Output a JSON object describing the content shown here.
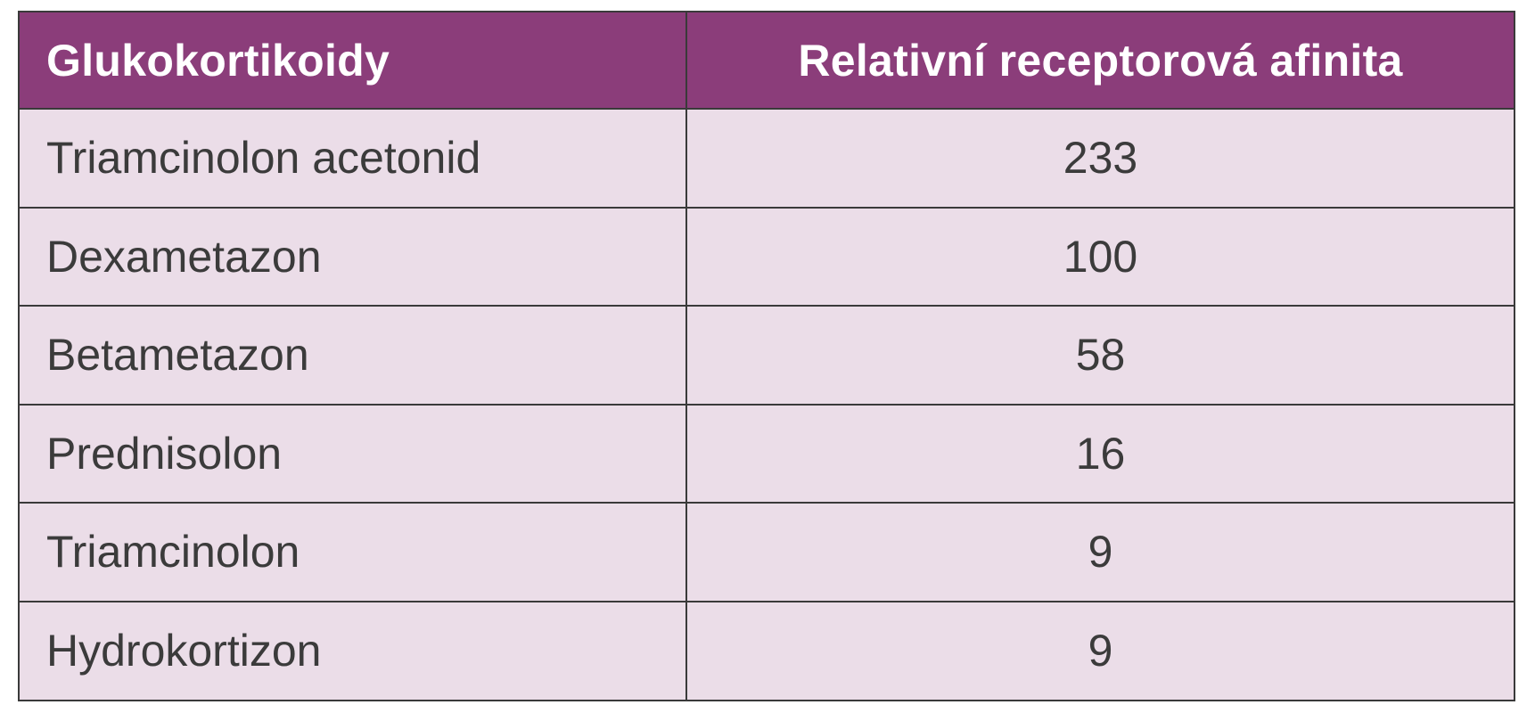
{
  "table": {
    "headers": [
      "Glukokortikoidy",
      "Relativní receptorová afinita"
    ],
    "rows": [
      {
        "name": "Triamcinolon acetonid",
        "value": "233"
      },
      {
        "name": "Dexametazon",
        "value": "100"
      },
      {
        "name": "Betametazon",
        "value": "58"
      },
      {
        "name": "Prednisolon",
        "value": "16"
      },
      {
        "name": "Triamcinolon",
        "value": "9"
      },
      {
        "name": "Hydrokortizon",
        "value": "9"
      }
    ]
  },
  "colors": {
    "header_bg": "#8b3d7a",
    "header_text": "#ffffff",
    "row_bg": "#ebdde8",
    "text": "#3b3b3b",
    "border": "#3a3a3a"
  }
}
